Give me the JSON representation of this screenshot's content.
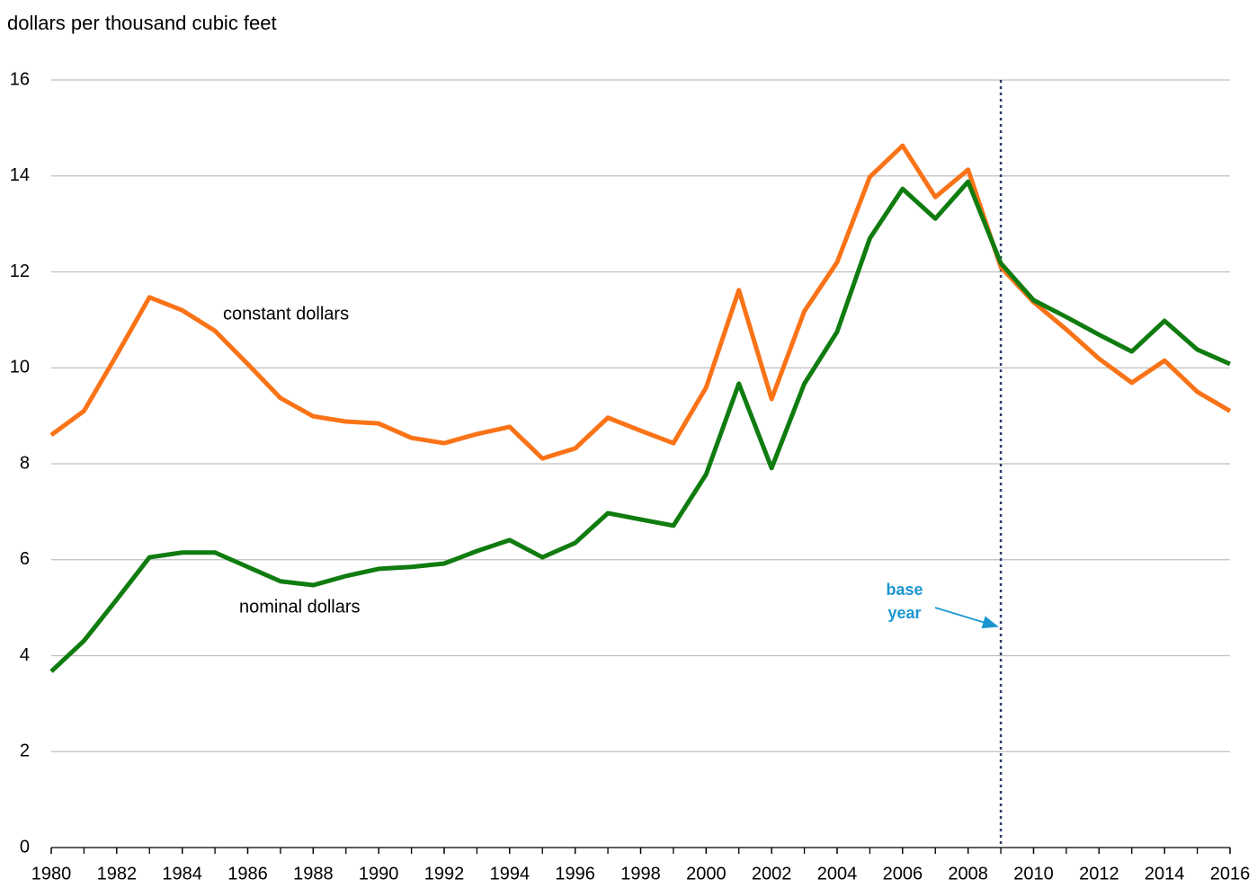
{
  "chart_data": {
    "type": "line",
    "y_axis_label": "dollars per thousand cubic feet",
    "x": [
      1980,
      1981,
      1982,
      1983,
      1984,
      1985,
      1986,
      1987,
      1988,
      1989,
      1990,
      1991,
      1992,
      1993,
      1994,
      1995,
      1996,
      1997,
      1998,
      1999,
      2000,
      2001,
      2002,
      2003,
      2004,
      2005,
      2006,
      2007,
      2008,
      2009,
      2010,
      2011,
      2012,
      2013,
      2014,
      2015,
      2016
    ],
    "series": [
      {
        "name": "constant dollars",
        "color": "#fa7317",
        "values": [
          8.6,
          9.1,
          10.27,
          11.47,
          11.2,
          10.77,
          10.08,
          9.37,
          8.99,
          8.88,
          8.84,
          8.54,
          8.43,
          8.62,
          8.77,
          8.11,
          8.32,
          8.96,
          8.69,
          8.43,
          9.59,
          11.62,
          9.35,
          11.18,
          12.2,
          13.98,
          14.63,
          13.56,
          14.13,
          12.1,
          11.37,
          10.8,
          10.19,
          9.69,
          10.15,
          9.5,
          9.1
        ]
      },
      {
        "name": "nominal dollars",
        "color": "#107c10",
        "values": [
          3.67,
          4.31,
          5.17,
          6.05,
          6.15,
          6.15,
          5.85,
          5.55,
          5.47,
          5.66,
          5.81,
          5.85,
          5.92,
          6.18,
          6.41,
          6.05,
          6.35,
          6.97,
          6.84,
          6.71,
          7.78,
          9.67,
          7.91,
          9.67,
          10.75,
          12.7,
          13.73,
          13.11,
          13.88,
          12.18,
          11.41,
          11.06,
          10.69,
          10.34,
          10.98,
          10.38,
          10.08
        ]
      }
    ],
    "xlim": [
      1980,
      2016
    ],
    "xticks": [
      1980,
      1982,
      1984,
      1986,
      1988,
      1990,
      1992,
      1994,
      1996,
      1998,
      2000,
      2002,
      2004,
      2006,
      2008,
      2010,
      2012,
      2014,
      2016
    ],
    "ylim": [
      0,
      16
    ],
    "yticks": [
      0,
      2,
      4,
      6,
      8,
      10,
      12,
      14,
      16
    ],
    "grid": true,
    "reference_line": {
      "x": 2009,
      "label": [
        "base",
        "year"
      ]
    }
  }
}
